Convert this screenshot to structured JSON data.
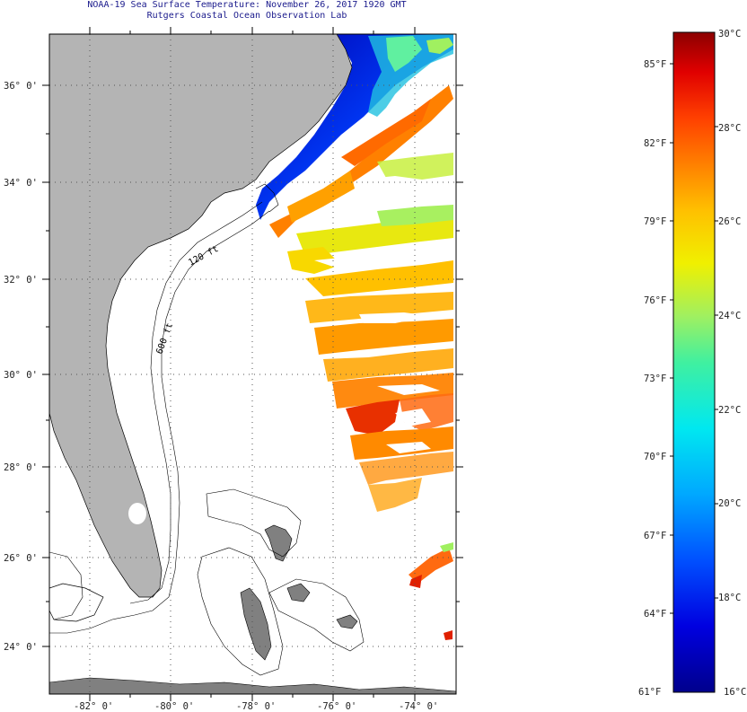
{
  "header": {
    "title": "NOAA-19 Sea Surface Temperature:  November 26, 2017 1920 GMT",
    "subtitle": "Rutgers Coastal Ocean Observation Lab"
  },
  "map": {
    "lat_labels": [
      "36° 0'",
      "34° 0'",
      "32° 0'",
      "30° 0'",
      "28° 0'",
      "26° 0'",
      "24° 0'"
    ],
    "lon_labels": [
      "-82° 0'",
      "-80° 0'",
      "-78° 0'",
      "-76° 0'",
      "-74° 0'"
    ],
    "contour_labels": [
      "120 ft",
      "600 ft"
    ],
    "colors": {
      "land": "#b4b4b4",
      "outline": "#000000",
      "grid": "#555555",
      "title": "#1a1a8c"
    }
  },
  "colorbar": {
    "fahrenheit_labels": [
      "85°F",
      "82°F",
      "79°F",
      "76°F",
      "73°F",
      "70°F",
      "67°F",
      "64°F",
      "61°F"
    ],
    "celsius_labels": [
      "30°C",
      "28°C",
      "26°C",
      "24°C",
      "22°C",
      "20°C",
      "18°C",
      "16°C"
    ],
    "range_c": [
      16,
      30
    ],
    "range_f": [
      61,
      86
    ],
    "colors": [
      "#00008c",
      "#0000e0",
      "#0050ff",
      "#00a8ff",
      "#00e8f0",
      "#40f0a0",
      "#a0f060",
      "#f0f000",
      "#ffc000",
      "#ff8000",
      "#ff4000",
      "#e00000",
      "#8c0000"
    ]
  }
}
